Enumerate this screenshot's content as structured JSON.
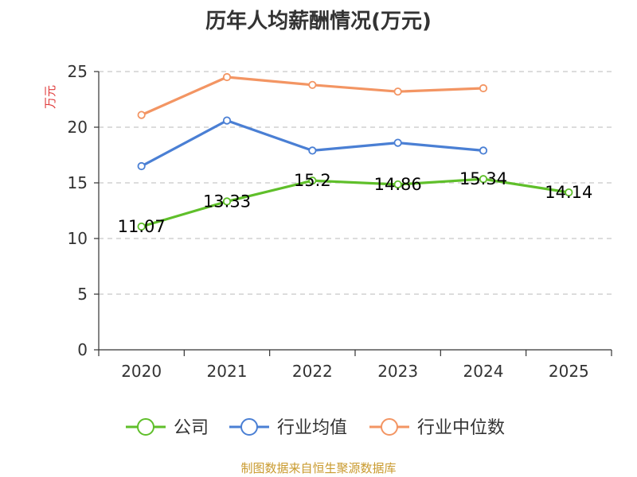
{
  "chart_data": {
    "type": "line",
    "title": "历年人均薪酬情况(万元)",
    "ylabel": "万元",
    "xlabel": "",
    "categories": [
      "2020",
      "2021",
      "2022",
      "2023",
      "2024",
      "2025"
    ],
    "ylim": [
      0,
      25
    ],
    "yticks": [
      0,
      5,
      10,
      15,
      20,
      25
    ],
    "grid": true,
    "legend_position": "bottom",
    "series": [
      {
        "name": "公司",
        "color": "#5fbf2a",
        "values": [
          11.07,
          13.33,
          15.2,
          14.86,
          15.34,
          14.14
        ],
        "labels": [
          "11.07",
          "13.33",
          "15.2",
          "14.86",
          "15.34",
          "14.14"
        ],
        "show_labels": true
      },
      {
        "name": "行业均值",
        "color": "#4a7fd4",
        "values": [
          16.5,
          20.6,
          17.9,
          18.6,
          17.9,
          null
        ],
        "show_labels": false
      },
      {
        "name": "行业中位数",
        "color": "#f39563",
        "values": [
          21.1,
          24.5,
          23.8,
          23.2,
          23.5,
          null
        ],
        "show_labels": false
      }
    ],
    "unit_color": "#e03c3c"
  },
  "source": "制图数据来自恒生聚源数据库"
}
